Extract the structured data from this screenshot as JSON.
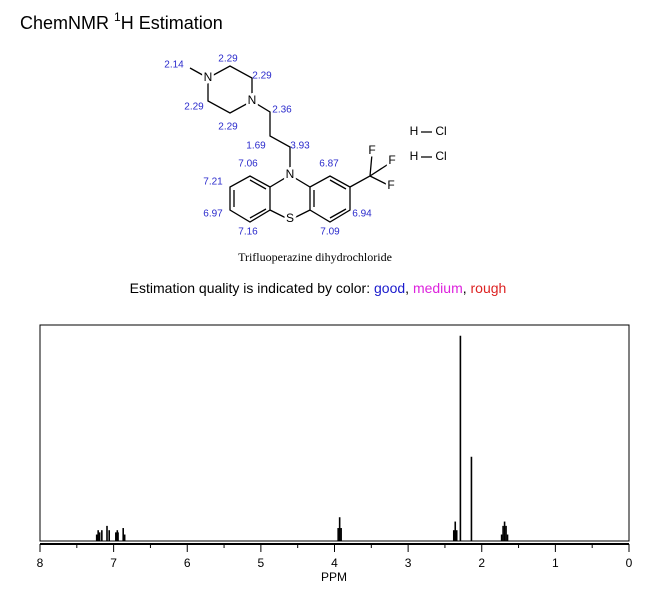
{
  "header": {
    "title": "ChemNMR ",
    "superscript": "1",
    "title_suffix": "H Estimation"
  },
  "molecule": {
    "name": "Trifluoperazine dihydrochloride",
    "atom_labels": [
      "N",
      "N",
      "N",
      "S",
      "F",
      "F",
      "F",
      "H",
      "Cl",
      "H",
      "Cl"
    ],
    "shift_labels": [
      "2.14",
      "2.29",
      "2.29",
      "2.29",
      "2.29",
      "2.36",
      "1.69",
      "3.93",
      "7.06",
      "6.87",
      "7.21",
      "6.97",
      "7.16",
      "7.09",
      "6.94"
    ],
    "shift_color": "#2a2acc"
  },
  "quality": {
    "prefix": "Estimation quality is indicated by color:",
    "separator": ",",
    "items": [
      {
        "label": "good",
        "color": "#1a1acc"
      },
      {
        "label": "medium",
        "color": "#dd22dd"
      },
      {
        "label": "rough",
        "color": "#dd2222"
      }
    ]
  },
  "chart_data": {
    "type": "spectrum",
    "xlabel": "PPM",
    "x": [
      7.23,
      7.21,
      7.19,
      7.16,
      7.09,
      7.06,
      6.97,
      6.95,
      6.94,
      6.87,
      6.85,
      3.95,
      3.93,
      3.91,
      2.38,
      2.36,
      2.34,
      2.29,
      2.14,
      1.73,
      1.71,
      1.69,
      1.67,
      1.65
    ],
    "values": [
      3,
      5,
      4,
      5,
      7,
      5,
      4,
      5,
      4,
      6,
      3,
      6,
      11,
      6,
      5,
      9,
      5,
      95,
      39,
      3,
      7,
      9,
      7,
      3
    ],
    "color": "#000000",
    "xlim": [
      8,
      0
    ],
    "ylim": [
      0,
      100
    ],
    "xticks": [
      8,
      7,
      6,
      5,
      4,
      3,
      2,
      1,
      0
    ],
    "xminorticks": [
      7.5,
      6.5,
      5.5,
      4.5,
      3.5,
      2.5,
      1.5,
      0.5
    ]
  }
}
